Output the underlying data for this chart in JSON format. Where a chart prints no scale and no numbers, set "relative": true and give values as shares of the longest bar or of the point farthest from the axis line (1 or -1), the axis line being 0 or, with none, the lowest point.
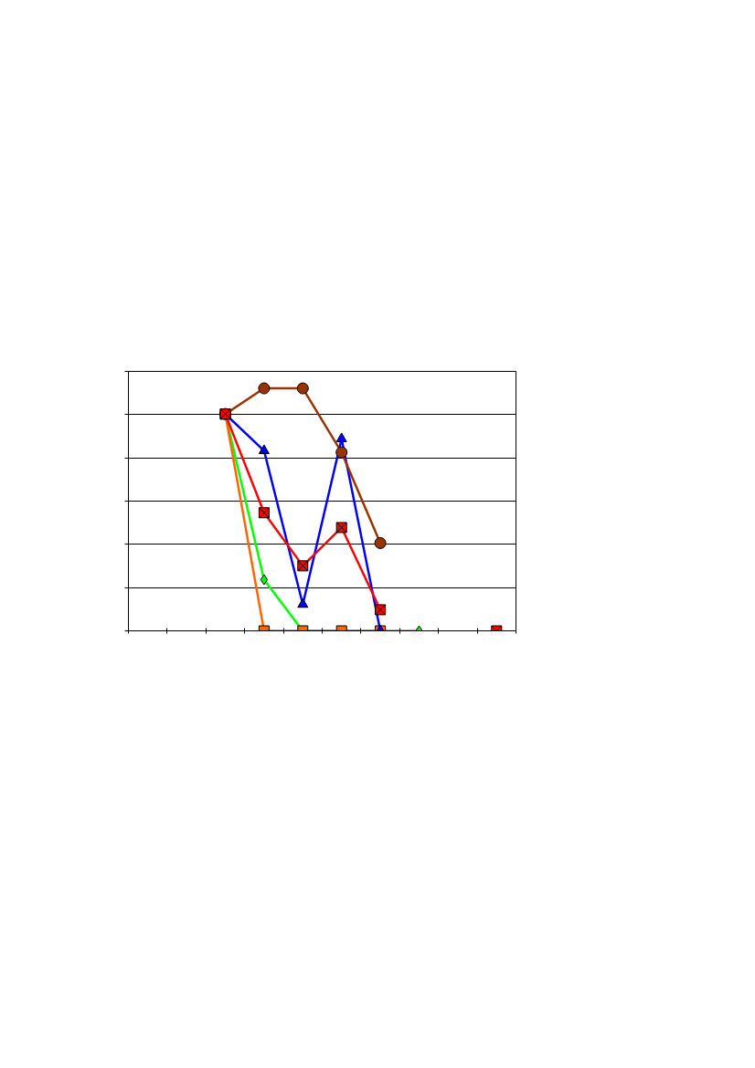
{
  "chart_data": {
    "type": "line",
    "relative": true,
    "grid": "y",
    "categories": [
      null,
      null,
      null,
      null,
      null,
      null,
      null,
      null,
      null,
      null
    ],
    "series": [
      {
        "color": "#00ff00",
        "marker": "diamond",
        "values": [
          null,
          null,
          0.894,
          0.211,
          0,
          0,
          0,
          0,
          null,
          null
        ]
      },
      {
        "color": "#ff6600",
        "marker": "square",
        "values": [
          null,
          null,
          0.894,
          0,
          0,
          0,
          0,
          null,
          null,
          null
        ]
      },
      {
        "color": "#0000ff",
        "marker": "triangle",
        "values": [
          null,
          null,
          0.894,
          0.743,
          0.109,
          0.792,
          0,
          null,
          null,
          null
        ]
      },
      {
        "color": "#993300",
        "marker": "circle",
        "values": [
          null,
          null,
          0.894,
          1,
          1,
          0.736,
          0.362,
          null,
          null,
          null
        ]
      },
      {
        "color": "#ff0000",
        "marker": "cross",
        "values": [
          null,
          null,
          0.894,
          0.487,
          0.268,
          0.426,
          0.087,
          null,
          null,
          0
        ]
      }
    ]
  }
}
